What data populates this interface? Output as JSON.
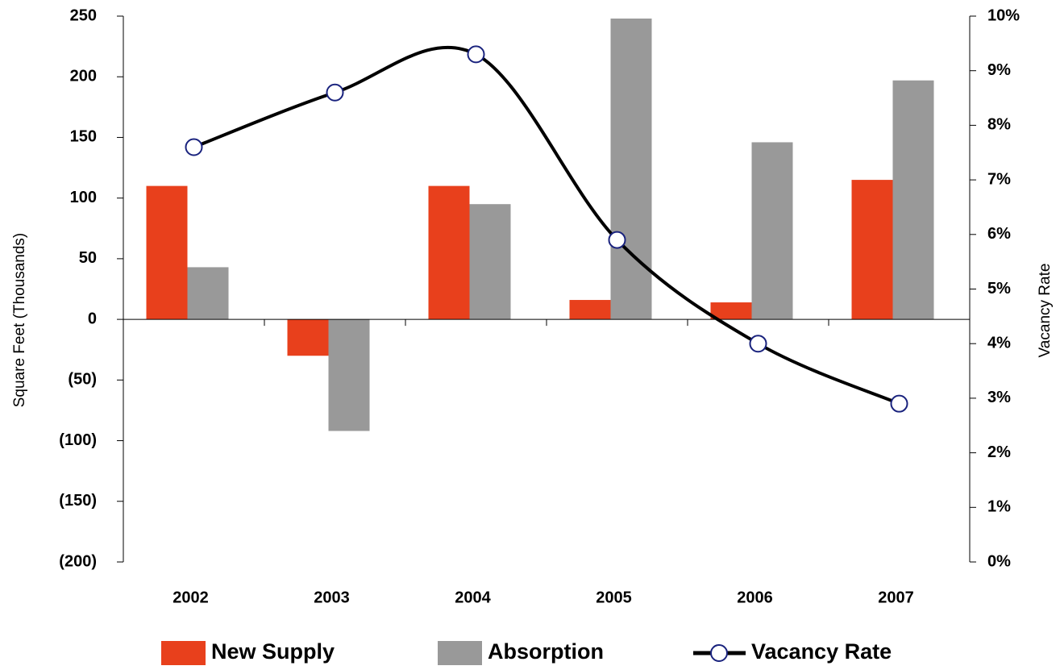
{
  "chart_data": {
    "type": "bar-line",
    "categories": [
      "2002",
      "2003",
      "2004",
      "2005",
      "2006",
      "2007"
    ],
    "series": [
      {
        "name": "New Supply",
        "color": "#e8401c",
        "type": "bar",
        "values": [
          110,
          -30,
          110,
          16,
          14,
          115
        ]
      },
      {
        "name": "Absorption",
        "color": "#999999",
        "type": "bar",
        "values": [
          43,
          -92,
          95,
          248,
          146,
          197
        ]
      },
      {
        "name": "Vacancy Rate",
        "color": "#000000",
        "type": "line",
        "axis": "y2",
        "values": [
          7.6,
          8.6,
          9.3,
          5.9,
          4.0,
          2.9
        ]
      }
    ],
    "y_label": "Square Feet (Thousands)",
    "y2_label": "Vacancy Rate",
    "ylim": [
      -200,
      250
    ],
    "yticks": [
      {
        "value": -200,
        "label": "(200)"
      },
      {
        "value": -150,
        "label": "(150)"
      },
      {
        "value": -100,
        "label": "(100)"
      },
      {
        "value": -50,
        "label": "(50)"
      },
      0,
      50,
      100,
      150,
      200,
      250
    ],
    "y2lim": [
      0,
      10
    ],
    "y2ticks": [
      {
        "value": 0,
        "label": "0%"
      },
      {
        "value": 1,
        "label": "1%"
      },
      {
        "value": 2,
        "label": "2%"
      },
      {
        "value": 3,
        "label": "3%"
      },
      {
        "value": 4,
        "label": "4%"
      },
      {
        "value": 5,
        "label": "5%"
      },
      {
        "value": 6,
        "label": "6%"
      },
      {
        "value": 7,
        "label": "7%"
      },
      {
        "value": 8,
        "label": "8%"
      },
      {
        "value": 9,
        "label": "9%"
      },
      {
        "value": 10,
        "label": "10%"
      }
    ],
    "legend": "bottom"
  }
}
